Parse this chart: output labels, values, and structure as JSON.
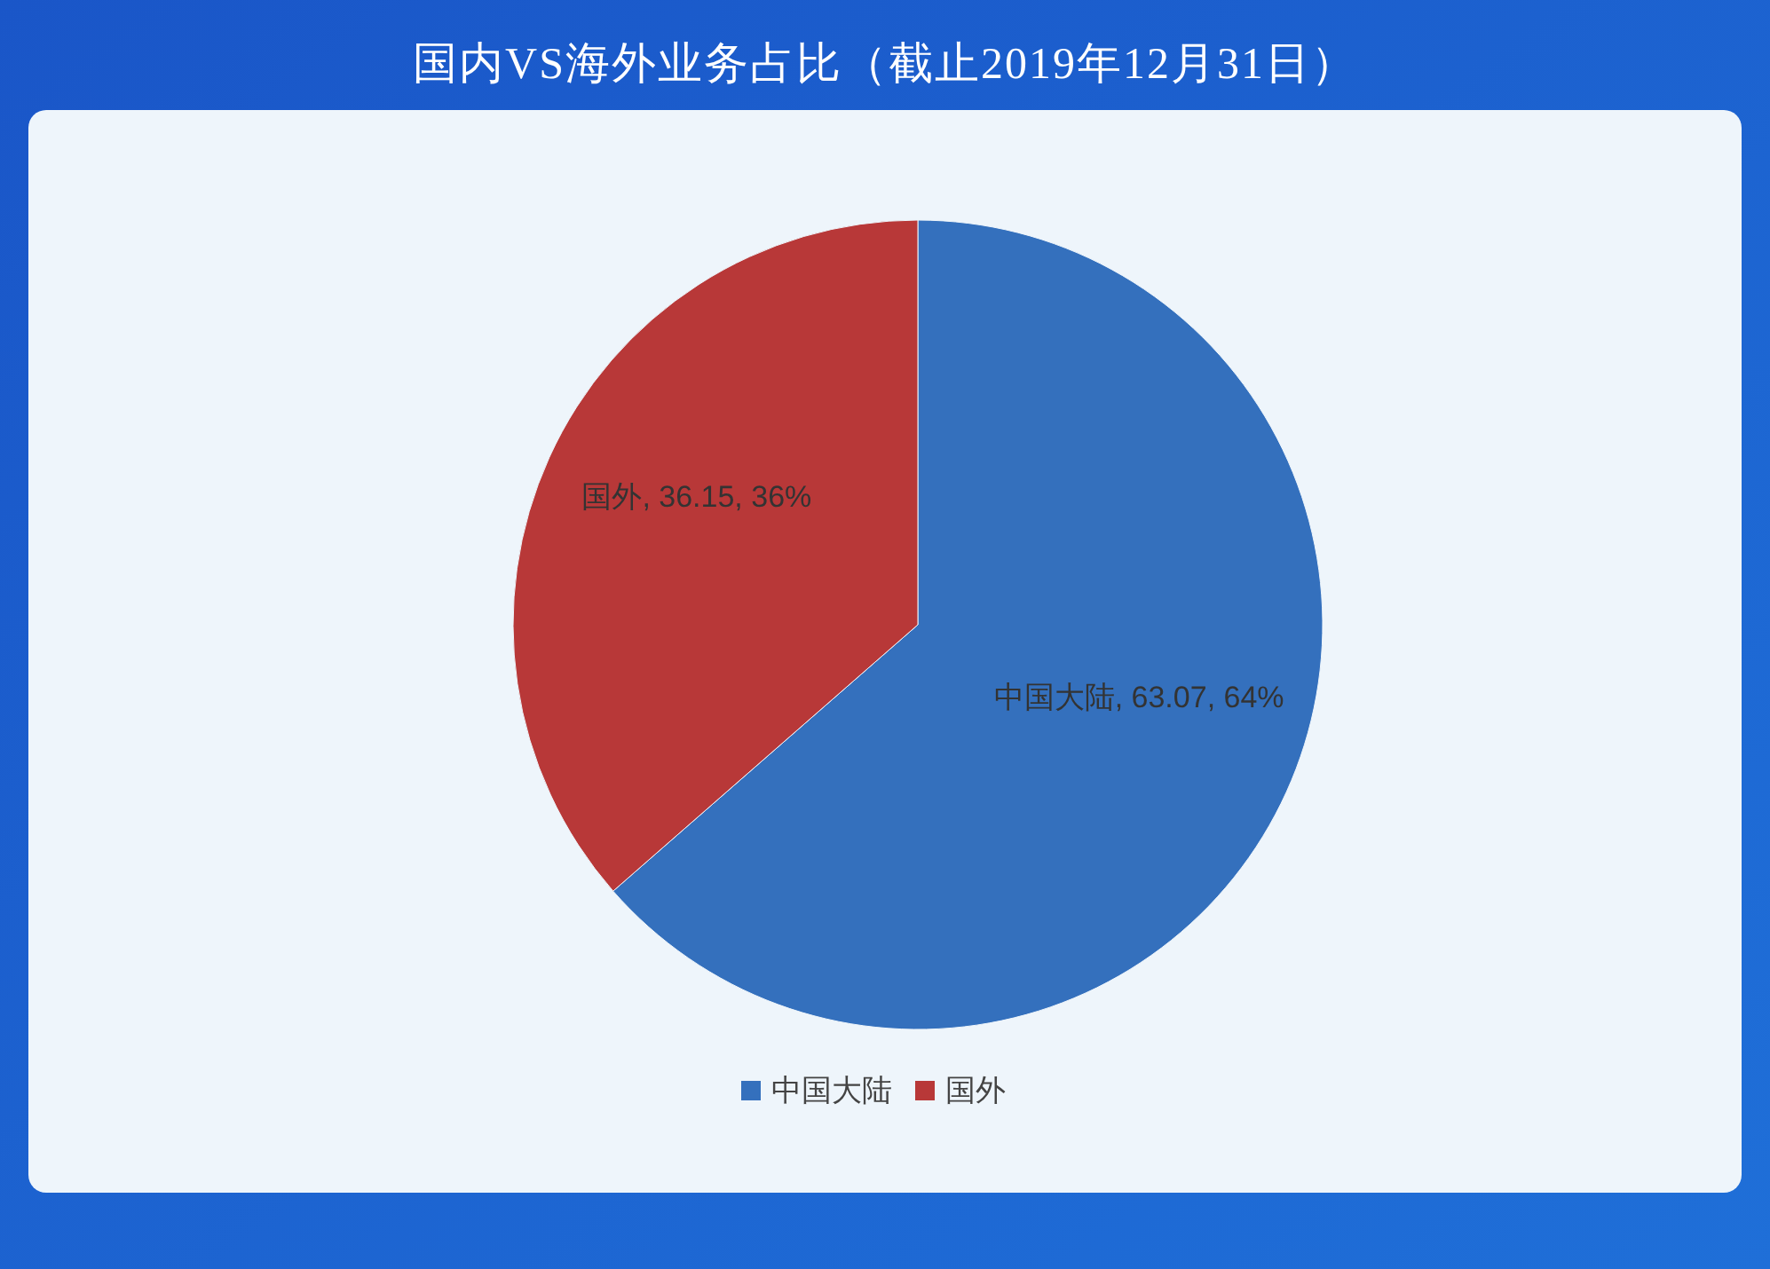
{
  "chart_data": {
    "type": "pie",
    "title": "国内VS海外业务占比（截止2019年12月31日）",
    "categories": [
      "中国大陆",
      "国外"
    ],
    "values": [
      63.07,
      36.15
    ],
    "value_labels": [
      "中国大陆, 63.07, 64%",
      "国外, 36.15, 36%"
    ],
    "colors": [
      "#3470bd",
      "#b83838"
    ],
    "legend": "bottom"
  }
}
